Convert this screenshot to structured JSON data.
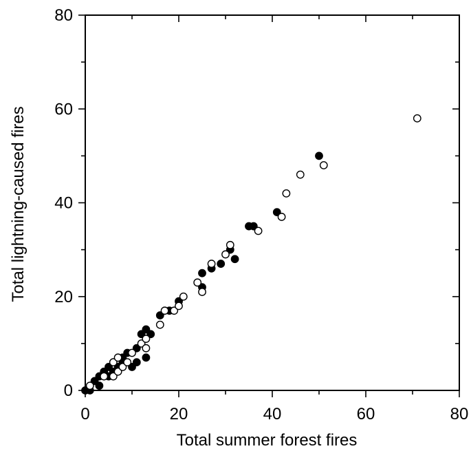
{
  "chart_data": {
    "type": "scatter",
    "title": "",
    "xlabel": "Total summer forest fires",
    "ylabel": "Total lightning-caused fires",
    "xlim": [
      0,
      80
    ],
    "ylim": [
      0,
      80
    ],
    "xticks": [
      "0",
      "20",
      "40",
      "60",
      "80"
    ],
    "yticks": [
      "0",
      "20",
      "40",
      "60",
      "80"
    ],
    "grid": false,
    "series": [
      {
        "marker": "filled-circle",
        "color": "#000000",
        "points": [
          [
            0,
            0
          ],
          [
            1,
            0
          ],
          [
            2,
            2
          ],
          [
            3,
            1
          ],
          [
            3,
            3
          ],
          [
            4,
            4
          ],
          [
            5,
            3
          ],
          [
            5,
            5
          ],
          [
            6,
            4
          ],
          [
            6,
            6
          ],
          [
            7,
            5
          ],
          [
            8,
            6
          ],
          [
            8,
            7
          ],
          [
            9,
            8
          ],
          [
            10,
            5
          ],
          [
            11,
            6
          ],
          [
            11,
            9
          ],
          [
            12,
            12
          ],
          [
            13,
            7
          ],
          [
            13,
            13
          ],
          [
            14,
            12
          ],
          [
            16,
            16
          ],
          [
            18,
            17
          ],
          [
            20,
            19
          ],
          [
            25,
            22
          ],
          [
            25,
            25
          ],
          [
            27,
            26
          ],
          [
            29,
            27
          ],
          [
            31,
            30
          ],
          [
            32,
            28
          ],
          [
            35,
            35
          ],
          [
            36,
            35
          ],
          [
            41,
            38
          ],
          [
            50,
            50
          ]
        ]
      },
      {
        "marker": "open-circle",
        "color": "#000000",
        "points": [
          [
            1,
            1
          ],
          [
            4,
            3
          ],
          [
            6,
            3
          ],
          [
            6,
            6
          ],
          [
            7,
            4
          ],
          [
            7,
            7
          ],
          [
            8,
            5
          ],
          [
            9,
            6
          ],
          [
            10,
            8
          ],
          [
            12,
            10
          ],
          [
            13,
            9
          ],
          [
            13,
            11
          ],
          [
            16,
            14
          ],
          [
            17,
            17
          ],
          [
            19,
            17
          ],
          [
            20,
            18
          ],
          [
            21,
            20
          ],
          [
            24,
            23
          ],
          [
            25,
            21
          ],
          [
            27,
            27
          ],
          [
            30,
            29
          ],
          [
            31,
            31
          ],
          [
            37,
            34
          ],
          [
            42,
            37
          ],
          [
            43,
            42
          ],
          [
            46,
            46
          ],
          [
            51,
            48
          ],
          [
            71,
            58
          ]
        ]
      }
    ]
  }
}
